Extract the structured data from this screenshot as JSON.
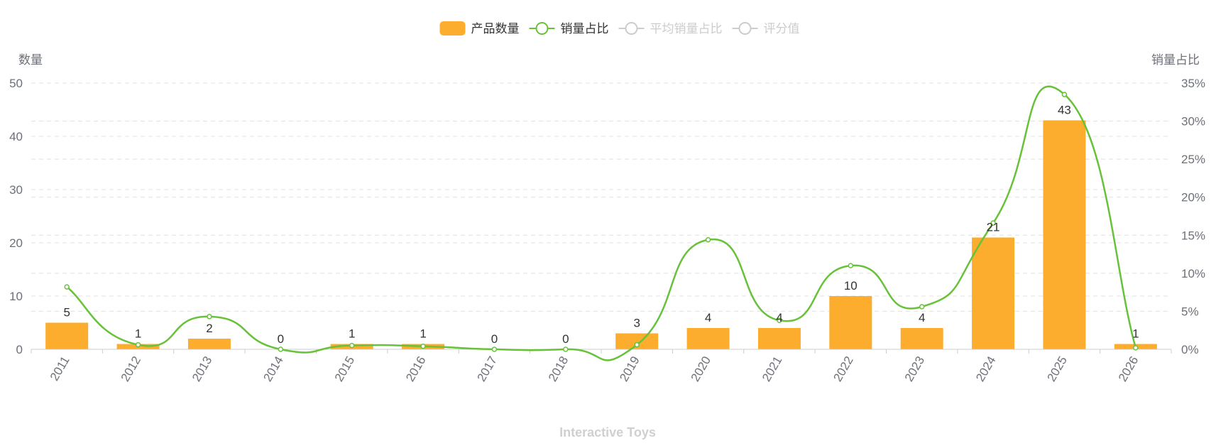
{
  "legend": [
    {
      "name": "产品数量",
      "type": "bar",
      "color": "#FCAD2E",
      "active": true
    },
    {
      "name": "销量占比",
      "type": "line",
      "color": "#67C23A",
      "active": true
    },
    {
      "name": "平均销量占比",
      "type": "line",
      "color": "#CCCCCC",
      "active": false
    },
    {
      "name": "评分值",
      "type": "line",
      "color": "#CCCCCC",
      "active": false
    }
  ],
  "chart_data": {
    "type": "bar",
    "categories": [
      "2011",
      "2012",
      "2013",
      "2014",
      "2015",
      "2016",
      "2017",
      "2018",
      "2019",
      "2020",
      "2021",
      "2022",
      "2023",
      "2024",
      "2025",
      "2026"
    ],
    "series": [
      {
        "name": "产品数量",
        "type": "bar",
        "axis": "left",
        "color": "#FCAD2E",
        "values": [
          5,
          1,
          2,
          0,
          1,
          1,
          0,
          0,
          3,
          4,
          4,
          10,
          4,
          21,
          43,
          1
        ],
        "labels": [
          "5",
          "1",
          "2",
          "0",
          "1",
          "1",
          "0",
          "0",
          "3",
          "4",
          "4",
          "10",
          "4",
          "21",
          "43",
          "1"
        ]
      },
      {
        "name": "销量占比",
        "type": "line",
        "axis": "right",
        "color": "#67C23A",
        "smooth": true,
        "values": [
          8.2,
          0.6,
          4.3,
          0.0,
          0.5,
          0.4,
          0.0,
          0.0,
          0.6,
          14.4,
          3.8,
          11.0,
          5.6,
          16.6,
          33.5,
          0.2
        ]
      }
    ],
    "y_left": {
      "name": "数量",
      "min": 0,
      "max": 50,
      "ticks": [
        "0",
        "10",
        "20",
        "30",
        "40",
        "50"
      ]
    },
    "y_right": {
      "name": "销量占比",
      "min": 0,
      "max": 35,
      "ticks": [
        "0%",
        "5%",
        "10%",
        "15%",
        "20%",
        "25%",
        "30%",
        "35%"
      ]
    },
    "grid": true
  },
  "footer": "Interactive Toys"
}
